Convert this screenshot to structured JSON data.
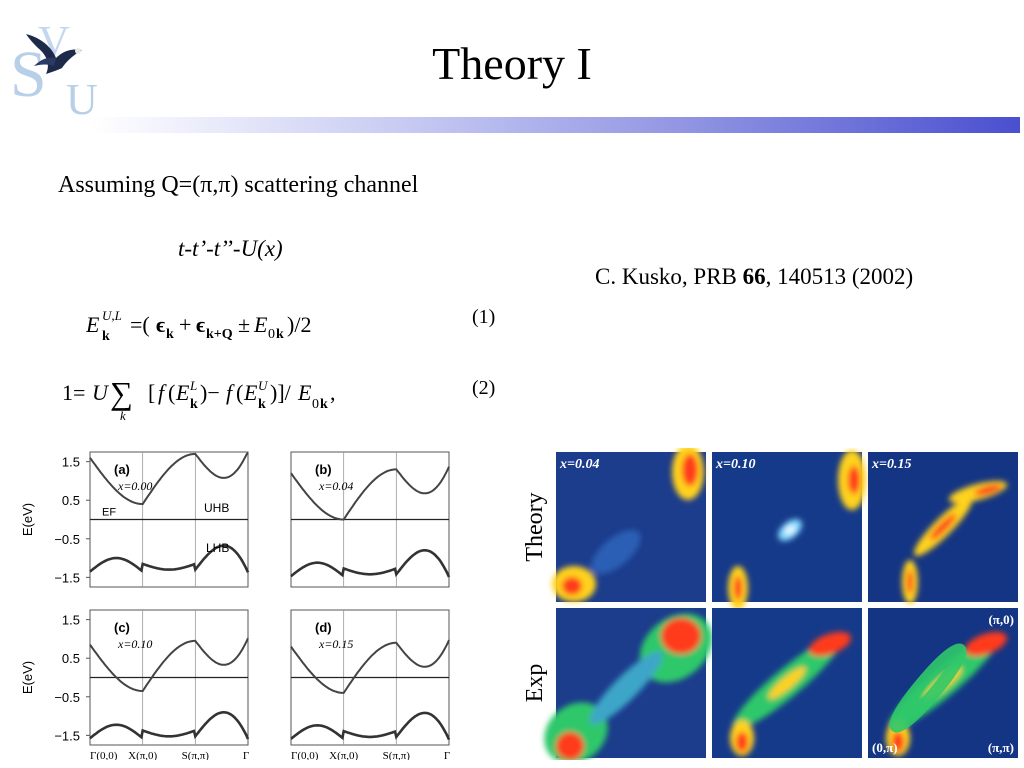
{
  "slide": {
    "title": "Theory I",
    "logo_letters": [
      "S",
      "V",
      "U"
    ],
    "assumption_text": "Assuming Q=(π,π) scattering channel",
    "model_text": "t-t’-t’’-U(x)",
    "reference": {
      "prefix": "C. Kusko, PRB ",
      "volume": "66",
      "suffix": ", 140513 (2002)"
    },
    "equation_numbers": [
      "(1)",
      "(2)"
    ]
  },
  "band_figure": {
    "panels": [
      {
        "label": "(a)",
        "doping": "x=0.00",
        "tags": [
          "UHB",
          "LHB"
        ],
        "fermi_label": "EF"
      },
      {
        "label": "(b)",
        "doping": "x=0.04"
      },
      {
        "label": "(c)",
        "doping": "x=0.10"
      },
      {
        "label": "(d)",
        "doping": "x=0.15"
      }
    ],
    "ylabel": "E(eV)",
    "y_ticks": [
      "1.5",
      "0.5",
      "−0.5",
      "−1.5"
    ],
    "x_ticks": [
      "Γ(0,0)",
      "X(π,0)",
      "S(π,π)",
      "Γ"
    ]
  },
  "map_figure": {
    "row_labels": [
      "Theory",
      "Exp"
    ],
    "column_labels": [
      "x=0.04",
      "x=0.10",
      "x=0.15"
    ],
    "corner_labels": [
      "(π,0)",
      "(0,π)",
      "(π,π)"
    ]
  }
}
